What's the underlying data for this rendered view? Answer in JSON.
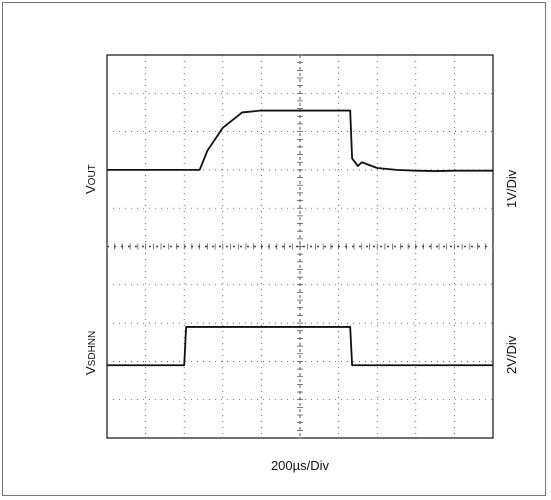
{
  "chart_data": {
    "type": "line",
    "title": "",
    "xlabel": "200µs/Div",
    "x_divisions": 10,
    "y_divisions": 10,
    "grid": true,
    "series": [
      {
        "name": "VOUT",
        "label_main": "V",
        "label_sub": "OUT",
        "scale": "1V/Div",
        "x_div": [
          0,
          1,
          2,
          2.4,
          2.6,
          3.0,
          3.5,
          4.0,
          4.5,
          5.0,
          5.5,
          6.0,
          6.3,
          6.35,
          6.5,
          6.6,
          7.0,
          7.5,
          8.0,
          8.5,
          9.0,
          9.5,
          10
        ],
        "y_div": [
          7.0,
          7.0,
          7.0,
          7.0,
          7.5,
          8.1,
          8.5,
          8.55,
          8.55,
          8.55,
          8.55,
          8.55,
          8.55,
          7.3,
          7.1,
          7.2,
          7.05,
          7.0,
          6.98,
          6.97,
          6.98,
          6.98,
          6.98
        ]
      },
      {
        "name": "VSDHNN",
        "label_main": "V",
        "label_sub": "SDHNN",
        "scale": "2V/Div",
        "x_div": [
          0,
          2.0,
          2.05,
          6.3,
          6.35,
          10
        ],
        "y_div": [
          1.9,
          1.9,
          2.9,
          2.9,
          1.9,
          1.9
        ]
      }
    ]
  },
  "colors": {
    "trace": "#111111",
    "grid": "#444444",
    "frame": "#777777"
  }
}
